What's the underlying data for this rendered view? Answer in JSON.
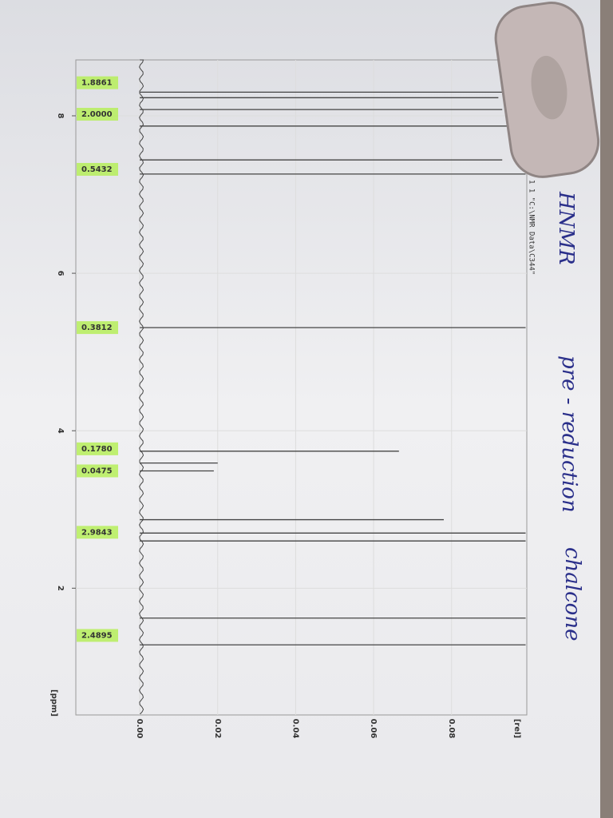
{
  "chart_data": {
    "type": "spectrum",
    "x": [
      8.3,
      8.23,
      8.08,
      7.87,
      7.44,
      7.26,
      5.31,
      3.74,
      3.59,
      3.49,
      2.87,
      2.7,
      2.6,
      1.62,
      1.28
    ],
    "values": [
      0.099,
      0.092,
      0.093,
      0.099,
      0.093,
      0.099,
      0.099,
      0.0665,
      0.02,
      0.019,
      0.078,
      0.099,
      0.099,
      0.099,
      0.099
    ],
    "color": "#444444",
    "xlim": [
      8.71,
      0.39
    ],
    "xticks": [
      8,
      6,
      4,
      2
    ],
    "xlabel": "[ppm]",
    "ylim": [
      -0.0164,
      0.0993
    ],
    "yticks": [
      {
        "value": 0,
        "label": "0.00"
      },
      0.02,
      0.04,
      0.06,
      0.08
    ],
    "ylabel": "[rel]",
    "grid": true,
    "integral_ppm": [
      8.42,
      8.02,
      7.32,
      5.31,
      3.77,
      3.49,
      2.71,
      1.4
    ],
    "integral_values": [
      1.8861,
      2,
      0.5432,
      0.3812,
      0.178,
      0.0475,
      2.9843,
      2.4895
    ],
    "integral_labels": [
      "1.8861",
      "2.0000",
      "0.5432",
      "0.3812",
      "0.1780",
      "0.0475",
      "2.9843",
      "2.4895"
    ],
    "file_label": "1 1 \"C:\\NMR Data\\C344\"",
    "notes": [
      "HNMR",
      "pre - reduction",
      "chalcone"
    ]
  }
}
